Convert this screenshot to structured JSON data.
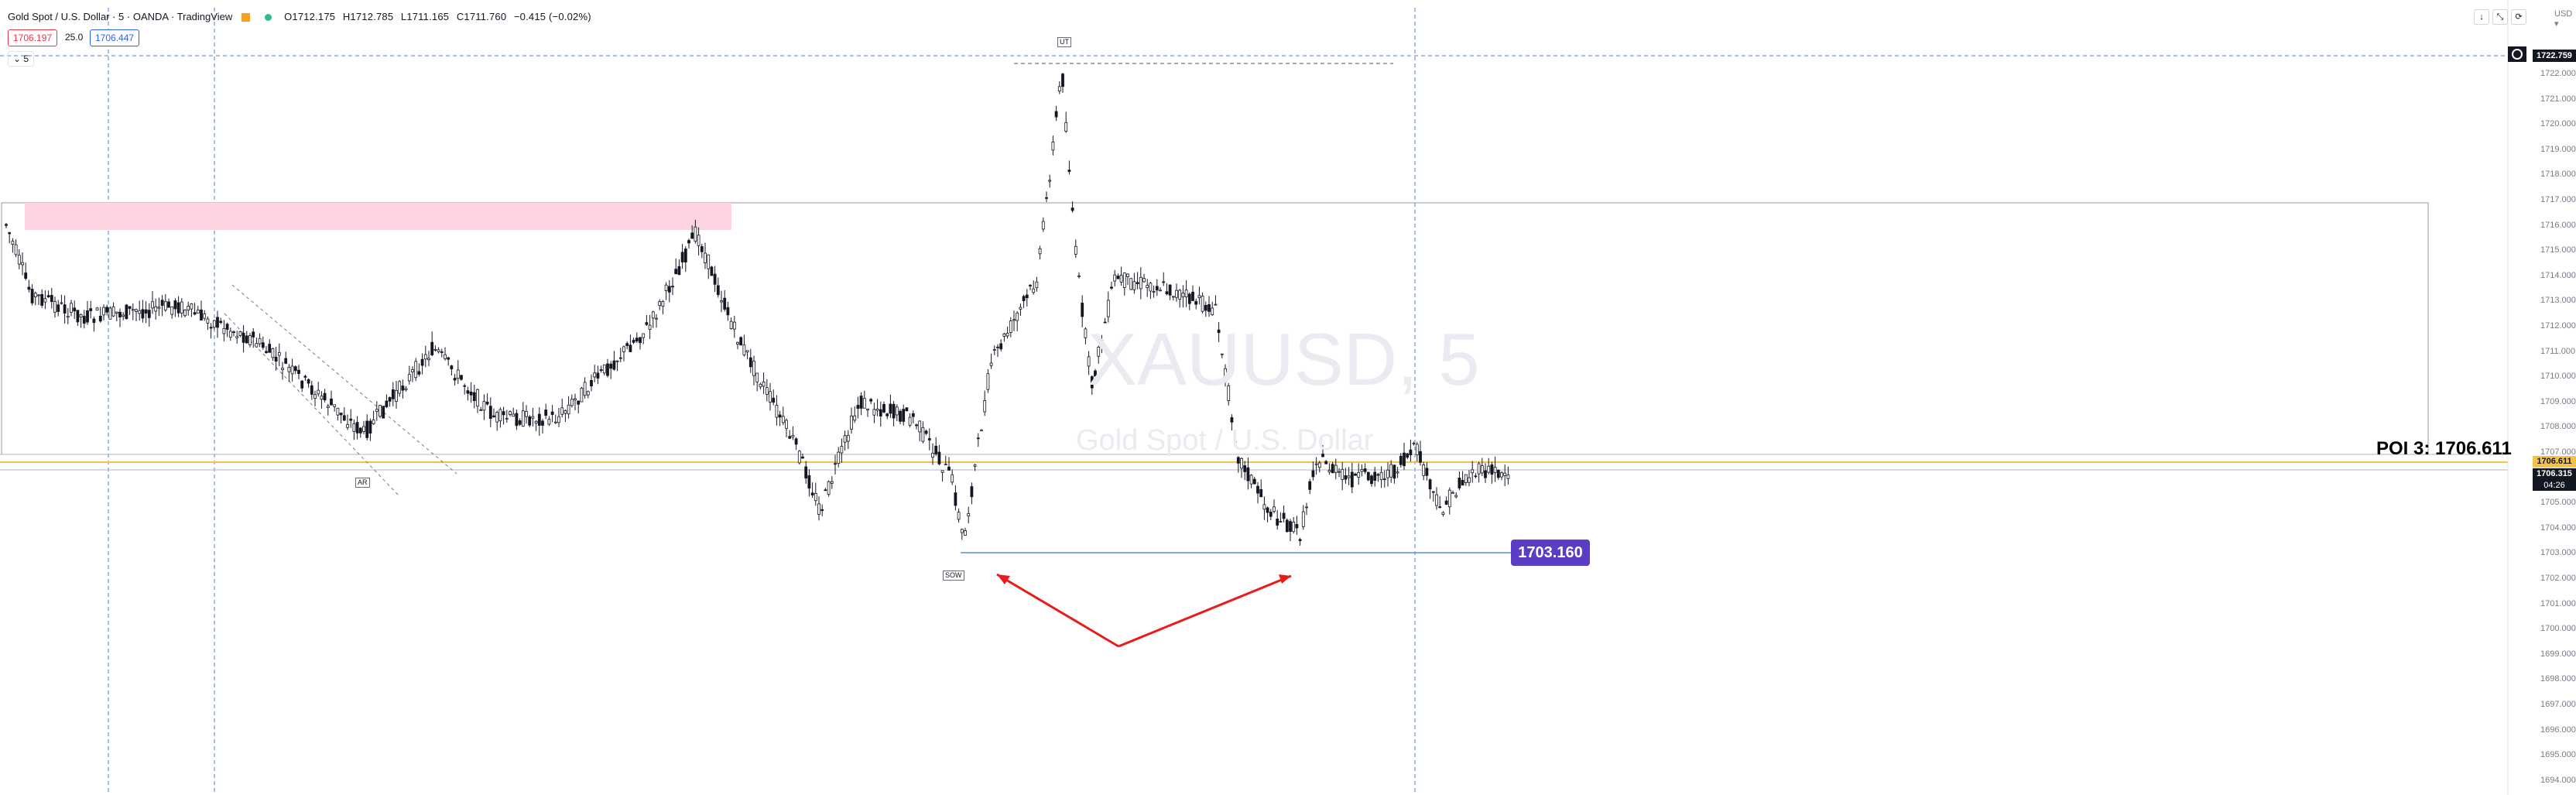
{
  "symbol": {
    "title": "Gold Spot / U.S. Dollar · 5 · OANDA · TradingView",
    "open": "O1712.175",
    "high": "H1712.785",
    "low": "L1711.165",
    "close": "C1711.760",
    "change": "−0.415 (−0.02%)"
  },
  "quote": {
    "bid": "1706.197",
    "spread": "25.0",
    "ask": "1706.447"
  },
  "collapse_label": "⌄ 5",
  "watermark": {
    "symbol": "XAUUSD, 5",
    "name": "Gold Spot / U.S. Dollar"
  },
  "currency": "USD ▾",
  "window_controls": [
    "↓",
    "⤡",
    "⟳"
  ],
  "price_axis": {
    "ticks": [
      "1722.000",
      "1721.000",
      "1720.000",
      "1719.000",
      "1718.000",
      "1717.000",
      "1716.000",
      "1715.000",
      "1714.000",
      "1713.000",
      "1712.000",
      "1711.000",
      "1710.000",
      "1709.000",
      "1708.000",
      "1707.000",
      "1705.000",
      "1704.000",
      "1703.000",
      "1702.000",
      "1701.000",
      "1700.000",
      "1699.000",
      "1698.000",
      "1697.000",
      "1696.000",
      "1695.000",
      "1694.000"
    ],
    "crosshair_price": "1722.759",
    "poi_price": "1706.611",
    "last_price": "1706.315",
    "countdown": "04:26"
  },
  "annotations": {
    "poi_label": "POI 3: 1706.611",
    "level_label": "1703.160",
    "marker_ut": "UT",
    "marker_ar": "AR",
    "marker_sow": "SOW"
  },
  "colors": {
    "up_candle": "#131722",
    "supply_zone": "#fcd3df",
    "poi_line": "#f5c14a",
    "level_line": "#5b8bd6",
    "level_tag": "#5b3cc4",
    "arrows": "#ea1b1b",
    "crosshair": "#4a86c8"
  },
  "icons": [
    "settings-icon",
    "currency-dropdown-icon",
    "down-arrow-icon",
    "fullscreen-icon",
    "reset-icon",
    "flag-icon",
    "market-open-dot-icon"
  ]
}
